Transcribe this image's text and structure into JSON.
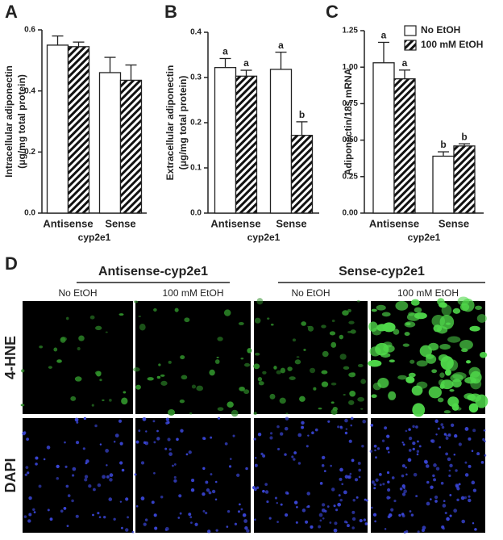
{
  "chart_data": [
    {
      "type": "bar",
      "panel": "A",
      "ylabel": [
        "Intracellular adiponectin",
        "(μg/mg total protein)"
      ],
      "xlabel": "cyp2e1",
      "categories": [
        "Antisense",
        "Sense"
      ],
      "series": [
        {
          "name": "No EtOH",
          "color": "#ffffff",
          "hatch": false,
          "values": [
            0.55,
            0.46
          ],
          "errors": [
            0.03,
            0.05
          ]
        },
        {
          "name": "100 mM EtOH",
          "color": "#ffffff",
          "hatch": true,
          "values": [
            0.545,
            0.435
          ],
          "errors": [
            0.015,
            0.05
          ]
        }
      ],
      "ylim": [
        0,
        0.6
      ],
      "yticks": [
        {
          "value": 0,
          "label": "0.0"
        },
        0.2,
        0.4,
        0.6
      ],
      "legend": false
    },
    {
      "type": "bar",
      "panel": "B",
      "ylabel": [
        "Extracellular adiponectin",
        "(μg/mg total protein)"
      ],
      "xlabel": "cyp2e1",
      "categories": [
        "Antisense",
        "Sense"
      ],
      "series": [
        {
          "name": "No EtOH",
          "color": "#ffffff",
          "hatch": false,
          "values": [
            0.322,
            0.318
          ],
          "errors": [
            0.02,
            0.038
          ],
          "annotations": [
            "a",
            "a"
          ]
        },
        {
          "name": "100 mM EtOH",
          "color": "#ffffff",
          "hatch": true,
          "values": [
            0.303,
            0.172
          ],
          "errors": [
            0.013,
            0.03
          ],
          "annotations": [
            "a",
            "b"
          ]
        }
      ],
      "ylim": [
        0,
        0.4
      ],
      "yticks": [
        {
          "value": 0,
          "label": "0.0"
        },
        0.1,
        0.2,
        0.3,
        0.4
      ],
      "legend": false
    },
    {
      "type": "bar",
      "panel": "C",
      "ylabel": [
        "Adiponectin/18s mRNA"
      ],
      "xlabel": "cyp2e1",
      "categories": [
        "Antisense",
        "Sense"
      ],
      "series": [
        {
          "name": "No EtOH",
          "color": "#ffffff",
          "hatch": false,
          "values": [
            1.03,
            0.39
          ],
          "errors": [
            0.14,
            0.03
          ],
          "annotations": [
            "a",
            "b"
          ]
        },
        {
          "name": "100 mM EtOH",
          "color": "#ffffff",
          "hatch": true,
          "values": [
            0.92,
            0.46
          ],
          "errors": [
            0.06,
            0.015
          ],
          "annotations": [
            "a",
            "b"
          ]
        }
      ],
      "ylim": [
        0,
        1.25
      ],
      "yticks": [
        {
          "value": 0,
          "label": "0.00"
        },
        {
          "value": 0.25,
          "label": "0.25"
        },
        {
          "value": 0.5,
          "label": "0.50"
        },
        {
          "value": 0.75,
          "label": "0.75"
        },
        {
          "value": 1,
          "label": "1.00"
        },
        {
          "value": 1.25,
          "label": "1.25"
        }
      ],
      "legend": "top-right"
    }
  ],
  "panel_d": {
    "panel": "D",
    "groups": [
      "Antisense-cyp2e1",
      "Sense-cyp2e1"
    ],
    "columns": [
      "No EtOH",
      "100 mM EtOH",
      "No EtOH",
      "100 mM EtOH"
    ],
    "rows": [
      "4-HNE",
      "DAPI"
    ]
  }
}
